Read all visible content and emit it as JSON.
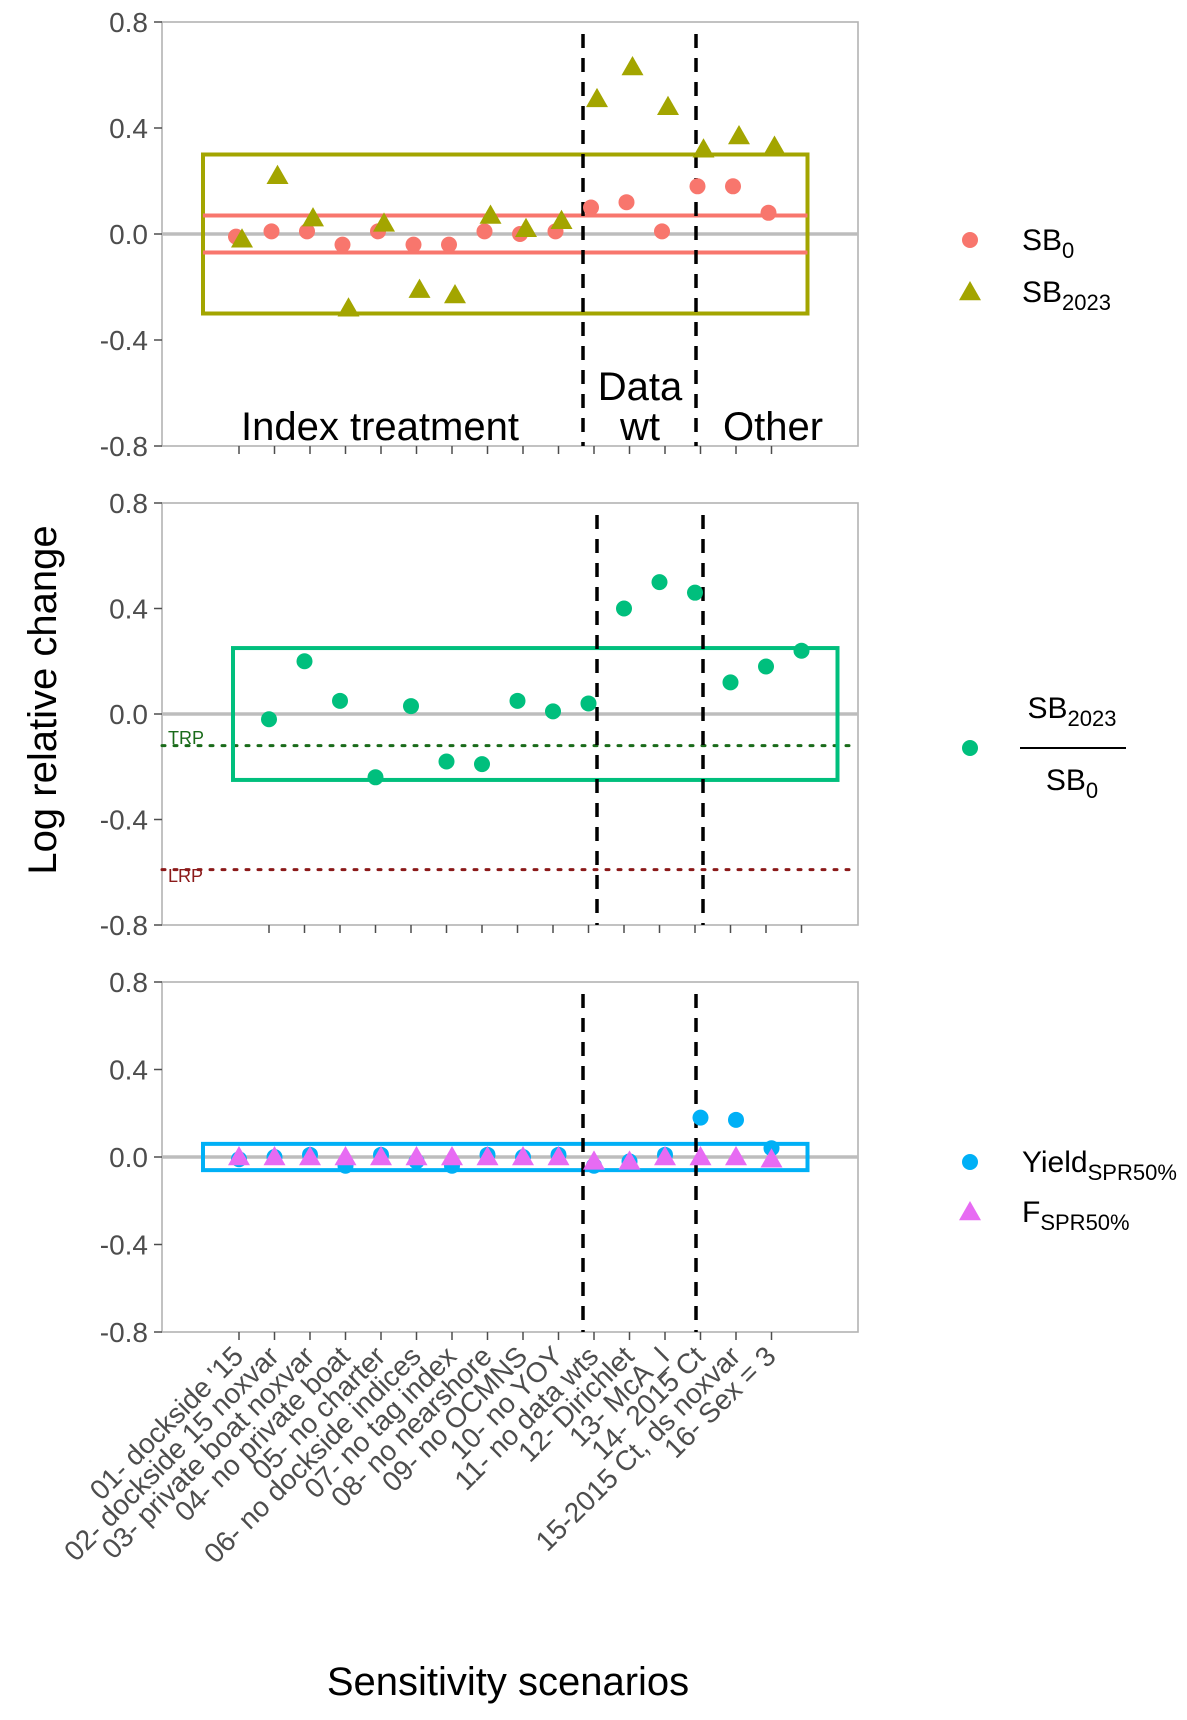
{
  "chart_data": {
    "type": "scatter",
    "xlabel": "Sensitivity scenarios",
    "ylabel": "Log relative change",
    "ylim": [
      -0.8,
      0.8
    ],
    "y_ticks": [
      "0.8",
      "0.4",
      "0.0",
      "-0.4",
      "-0.8"
    ],
    "categories": [
      "01- dockside '15",
      "02- dockside 15 noxvar",
      "03- private boat noxvar",
      "04- no private boat",
      "05- no charter",
      "06- no dockside indices",
      "07- no tag index",
      "08- no nearshore",
      "09- no OCMNS",
      "10- no YOY",
      "11- no data wts",
      "12- Dirichlet",
      "13- McA_I",
      "14- 2015 Ct",
      "15-2015 Ct, ds noxvar",
      "16- Sex = 3"
    ],
    "region_labels": [
      "Index treatment",
      "Data",
      "wt",
      "Other"
    ],
    "ref_lines": {
      "trp": "TRP",
      "lrp": "LRP",
      "trp_value": -0.12,
      "lrp_value": -0.59
    },
    "panels": [
      {
        "legend": [
          {
            "base": "SB",
            "sub": "0",
            "shape": "circle",
            "color": "#F8766D"
          },
          {
            "base": "SB",
            "sub": "2023",
            "shape": "triangle",
            "color": "#A3A500"
          }
        ],
        "series": [
          {
            "name": "SB0",
            "shape": "circle",
            "color": "#F8766D",
            "values": [
              -0.01,
              0.01,
              0.01,
              -0.04,
              0.01,
              -0.04,
              -0.04,
              0.01,
              0.0,
              0.01,
              0.1,
              0.12,
              0.01,
              0.18,
              0.18,
              0.08
            ]
          },
          {
            "name": "SB2023",
            "shape": "triangle",
            "color": "#A3A500",
            "values": [
              -0.02,
              0.22,
              0.06,
              -0.28,
              0.04,
              -0.21,
              -0.23,
              0.07,
              0.02,
              0.05,
              0.51,
              0.63,
              0.48,
              0.32,
              0.37,
              0.33
            ]
          }
        ],
        "boxes": [
          {
            "color": "#A3A500",
            "ymin": -0.3,
            "ymax": 0.3
          }
        ],
        "hlines": [
          {
            "y": 0.07,
            "color": "#F8766D"
          },
          {
            "y": -0.07,
            "color": "#F8766D"
          }
        ]
      },
      {
        "legend_fraction": {
          "num": "SB",
          "num_sub": "2023",
          "den": "SB",
          "den_sub": "0",
          "color": "#00BF7D"
        },
        "series": [
          {
            "name": "SB2023/SB0",
            "shape": "circle",
            "color": "#00BF7D",
            "values": [
              -0.02,
              0.2,
              0.05,
              -0.24,
              0.03,
              -0.18,
              -0.19,
              0.05,
              0.01,
              0.04,
              0.4,
              0.5,
              0.46,
              0.12,
              0.18,
              0.24
            ]
          }
        ],
        "boxes": [
          {
            "color": "#00BF7D",
            "ymin": -0.25,
            "ymax": 0.25
          }
        ]
      },
      {
        "legend": [
          {
            "base": "Yield",
            "sub": "SPR50%",
            "shape": "circle",
            "color": "#00B0F6"
          },
          {
            "base": "F",
            "sub": "SPR50%",
            "shape": "triangle",
            "color": "#E76BF3"
          }
        ],
        "series": [
          {
            "name": "YieldSPR50%",
            "shape": "circle",
            "color": "#00B0F6",
            "values": [
              -0.01,
              0.0,
              0.01,
              -0.04,
              0.01,
              -0.02,
              -0.04,
              0.01,
              0.0,
              0.01,
              -0.04,
              -0.02,
              0.01,
              0.18,
              0.17,
              0.04
            ]
          },
          {
            "name": "FSPR50%",
            "shape": "triangle",
            "color": "#E76BF3",
            "values": [
              0.0,
              0.0,
              0.0,
              0.0,
              0.0,
              0.0,
              0.0,
              0.0,
              0.0,
              0.0,
              -0.02,
              -0.02,
              0.0,
              0.0,
              0.0,
              -0.01
            ]
          }
        ],
        "boxes": [
          {
            "color": "#00B0F6",
            "ymin": -0.06,
            "ymax": 0.06
          }
        ]
      }
    ]
  }
}
